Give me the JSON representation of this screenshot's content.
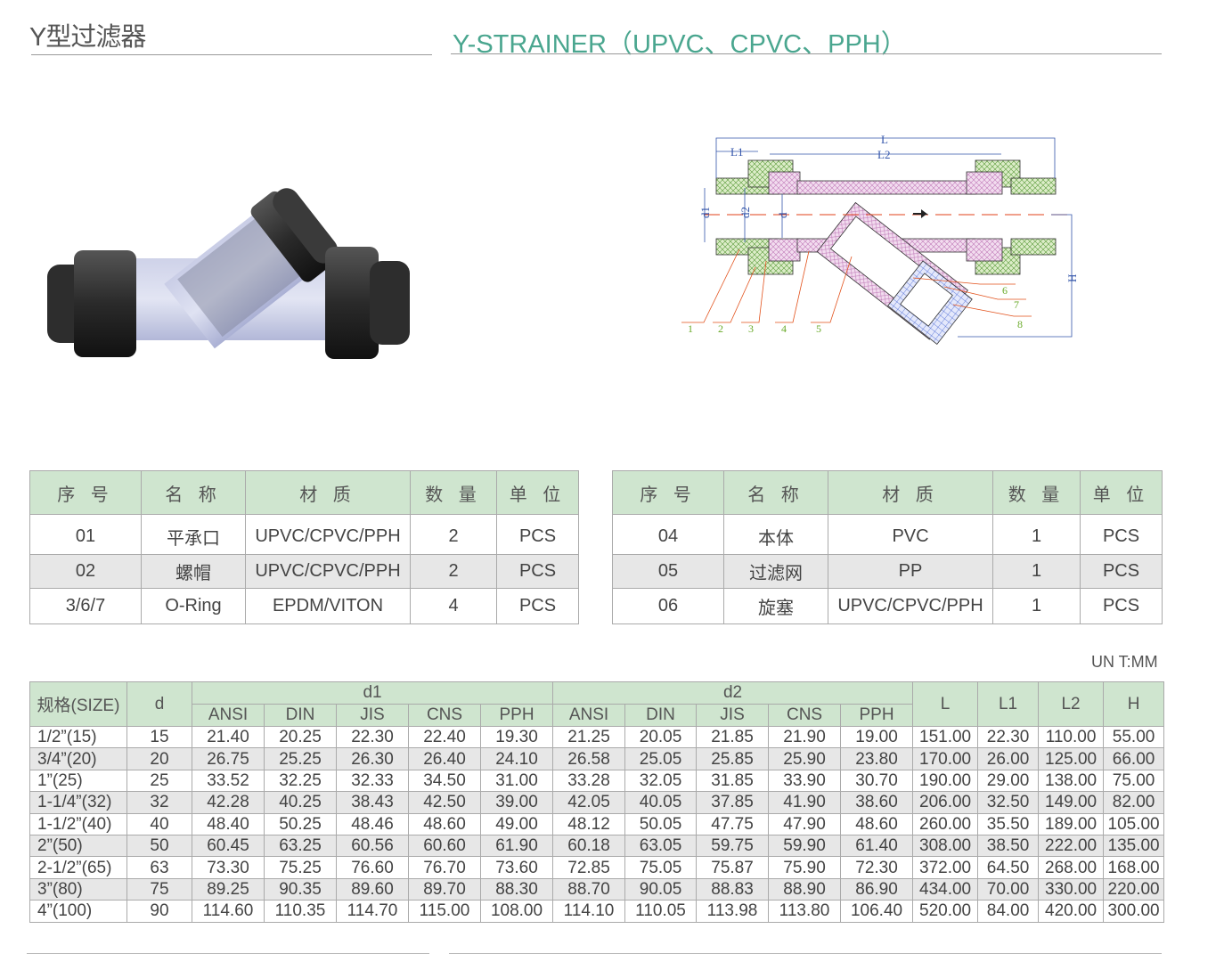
{
  "header": {
    "title_cn": "Y型过滤器",
    "title_en": "Y-STRAINER（UPVC、CPVC、PPH）"
  },
  "drawing": {
    "dimension_labels": [
      "L",
      "L1",
      "L2",
      "d1",
      "d2",
      "d",
      "H"
    ],
    "callouts": [
      "1",
      "2",
      "3",
      "4",
      "5",
      "6",
      "7",
      "8"
    ]
  },
  "parts_table": {
    "headers": [
      "序 号",
      "名 称",
      "材 质",
      "数 量",
      "单 位"
    ],
    "left_rows": [
      [
        "01",
        "平承口",
        "UPVC/CPVC/PPH",
        "2",
        "PCS"
      ],
      [
        "02",
        "螺帽",
        "UPVC/CPVC/PPH",
        "2",
        "PCS"
      ],
      [
        "3/6/7",
        "O-Ring",
        "EPDM/VITON",
        "4",
        "PCS"
      ]
    ],
    "right_rows": [
      [
        "04",
        "本体",
        "PVC",
        "1",
        "PCS"
      ],
      [
        "05",
        "过滤网",
        "PP",
        "1",
        "PCS"
      ],
      [
        "06",
        "旋塞",
        "UPVC/CPVC/PPH",
        "1",
        "PCS"
      ]
    ]
  },
  "unit_label": "UN T:MM",
  "spec_table": {
    "size_header": "规格(SIZE)",
    "d_header": "d",
    "d1_header": "d1",
    "d2_header": "d2",
    "sub_headers": [
      "ANSI",
      "DIN",
      "JIS",
      "CNS",
      "PPH"
    ],
    "tail_headers": [
      "L",
      "L1",
      "L2",
      "H"
    ],
    "rows": [
      [
        "1/2”(15)",
        "15",
        "21.40",
        "20.25",
        "22.30",
        "22.40",
        "19.30",
        "21.25",
        "20.05",
        "21.85",
        "21.90",
        "19.00",
        "151.00",
        "22.30",
        "110.00",
        "55.00"
      ],
      [
        "3/4”(20)",
        "20",
        "26.75",
        "25.25",
        "26.30",
        "26.40",
        "24.10",
        "26.58",
        "25.05",
        "25.85",
        "25.90",
        "23.80",
        "170.00",
        "26.00",
        "125.00",
        "66.00"
      ],
      [
        "1”(25)",
        "25",
        "33.52",
        "32.25",
        "32.33",
        "34.50",
        "31.00",
        "33.28",
        "32.05",
        "31.85",
        "33.90",
        "30.70",
        "190.00",
        "29.00",
        "138.00",
        "75.00"
      ],
      [
        "1-1/4”(32)",
        "32",
        "42.28",
        "40.25",
        "38.43",
        "42.50",
        "39.00",
        "42.05",
        "40.05",
        "37.85",
        "41.90",
        "38.60",
        "206.00",
        "32.50",
        "149.00",
        "82.00"
      ],
      [
        "1-1/2”(40)",
        "40",
        "48.40",
        "50.25",
        "48.46",
        "48.60",
        "49.00",
        "48.12",
        "50.05",
        "47.75",
        "47.90",
        "48.60",
        "260.00",
        "35.50",
        "189.00",
        "105.00"
      ],
      [
        "2”(50)",
        "50",
        "60.45",
        "63.25",
        "60.56",
        "60.60",
        "61.90",
        "60.18",
        "63.05",
        "59.75",
        "59.90",
        "61.40",
        "308.00",
        "38.50",
        "222.00",
        "135.00"
      ],
      [
        "2-1/2”(65)",
        "63",
        "73.30",
        "75.25",
        "76.60",
        "76.70",
        "73.60",
        "72.85",
        "75.05",
        "75.87",
        "75.90",
        "72.30",
        "372.00",
        "64.50",
        "268.00",
        "168.00"
      ],
      [
        "3”(80)",
        "75",
        "89.25",
        "90.35",
        "89.60",
        "89.70",
        "88.30",
        "88.70",
        "90.05",
        "88.83",
        "88.90",
        "86.90",
        "434.00",
        "70.00",
        "330.00",
        "220.00"
      ],
      [
        "4”(100)",
        "90",
        "114.60",
        "110.35",
        "114.70",
        "115.00",
        "108.00",
        "114.10",
        "110.05",
        "113.98",
        "113.80",
        "106.40",
        "520.00",
        "84.00",
        "420.00",
        "300.00"
      ]
    ]
  },
  "colors": {
    "accent_title": "#4aa68f",
    "table_header_bg": "#cfe5cf",
    "alt_row_bg": "#e7e7e7"
  }
}
